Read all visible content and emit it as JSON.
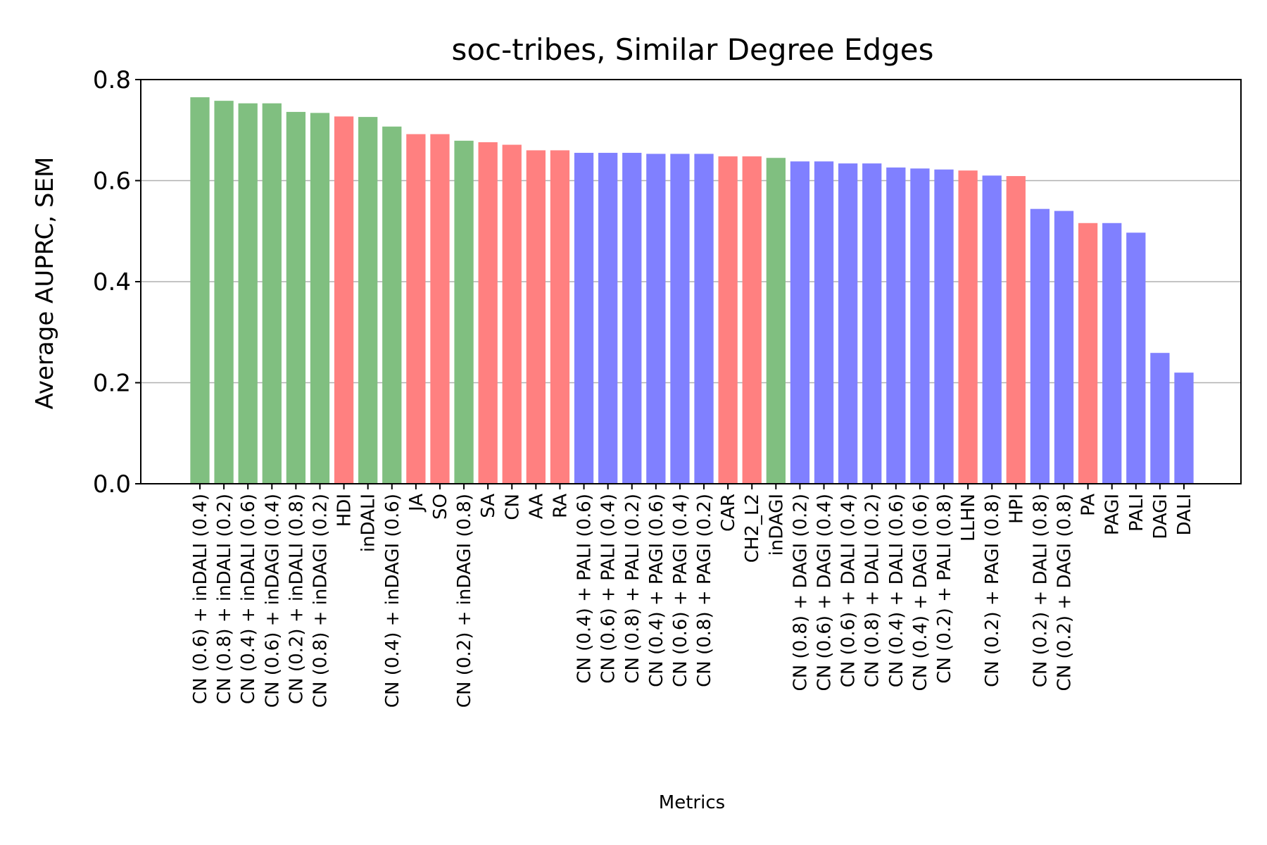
{
  "colors": {
    "green": "#80bf80",
    "red": "#ff8080",
    "blue": "#8080ff",
    "grid": "#b0b0b0",
    "axis": "#000000"
  },
  "chart_data": {
    "type": "bar",
    "title": "soc-tribes, Similar Degree Edges",
    "xlabel": "Metrics",
    "ylabel": "Average AUPRC, SEM",
    "ylim": [
      0,
      0.8
    ],
    "yticks": [
      "0.0",
      "0.2",
      "0.4",
      "0.6",
      "0.8"
    ],
    "grid": "y",
    "categories": [
      "CN (0.6) + inDALI (0.4)",
      "CN (0.8) + inDALI (0.2)",
      "CN (0.4) + inDALI (0.6)",
      "CN (0.6) + inDAGI (0.4)",
      "CN (0.2) + inDALI (0.8)",
      "CN (0.8) + inDAGI (0.2)",
      "HDI",
      "inDALI",
      "CN (0.4) + inDAGI (0.6)",
      "JA",
      "SO",
      "CN (0.2) + inDAGI (0.8)",
      "SA",
      "CN",
      "AA",
      "RA",
      "CN (0.4) + PALI (0.6)",
      "CN (0.6) + PALI (0.4)",
      "CN (0.8) + PALI (0.2)",
      "CN (0.4) + PAGI (0.6)",
      "CN (0.6) + PAGI (0.4)",
      "CN (0.8) + PAGI (0.2)",
      "CAR",
      "CH2_L2",
      "inDAGI",
      "CN (0.8) + DAGI (0.2)",
      "CN (0.6) + DAGI (0.4)",
      "CN (0.6) + DALI (0.4)",
      "CN (0.8) + DALI (0.2)",
      "CN (0.4) + DALI (0.6)",
      "CN (0.4) + DAGI (0.6)",
      "CN (0.2) + PALI (0.8)",
      "LLHN",
      "CN (0.2) + PAGI (0.8)",
      "HPI",
      "CN (0.2) + DALI (0.8)",
      "CN (0.2) + DAGI (0.8)",
      "PA",
      "PAGI",
      "PALI",
      "DAGI",
      "DALI"
    ],
    "values": [
      0.765,
      0.758,
      0.753,
      0.753,
      0.736,
      0.734,
      0.727,
      0.726,
      0.707,
      0.692,
      0.692,
      0.679,
      0.676,
      0.671,
      0.66,
      0.66,
      0.655,
      0.655,
      0.655,
      0.653,
      0.653,
      0.653,
      0.648,
      0.648,
      0.645,
      0.638,
      0.638,
      0.634,
      0.634,
      0.626,
      0.624,
      0.622,
      0.62,
      0.61,
      0.609,
      0.544,
      0.54,
      0.516,
      0.516,
      0.497,
      0.259,
      0.22
    ],
    "bar_colors": [
      "green",
      "green",
      "green",
      "green",
      "green",
      "green",
      "red",
      "green",
      "green",
      "red",
      "red",
      "green",
      "red",
      "red",
      "red",
      "red",
      "blue",
      "blue",
      "blue",
      "blue",
      "blue",
      "blue",
      "red",
      "red",
      "green",
      "blue",
      "blue",
      "blue",
      "blue",
      "blue",
      "blue",
      "blue",
      "red",
      "blue",
      "red",
      "blue",
      "blue",
      "red",
      "blue",
      "blue",
      "blue",
      "blue"
    ]
  }
}
